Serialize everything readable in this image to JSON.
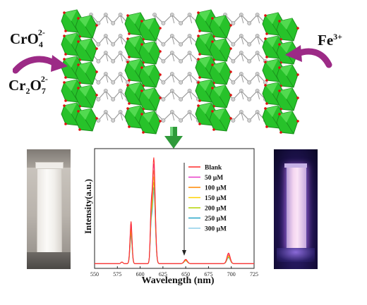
{
  "ions": {
    "left_top": {
      "base": "CrO",
      "sub": "4",
      "sup": "2-"
    },
    "left_bottom": {
      "base1": "Cr",
      "sub1": "2",
      "base2": "O",
      "sub2": "7",
      "sup": "2-"
    },
    "right": {
      "base": "Fe",
      "sup": "3+"
    }
  },
  "colors": {
    "polyhedra": "#27c22a",
    "polyhedra_dark": "#1a8f1c",
    "linker_atoms": "#d2d2d2",
    "oxygen": "#e01010",
    "arrow_magenta": "#9c2a86",
    "down_arrow": "#2f9a3a"
  },
  "chart_data": {
    "type": "line",
    "xlabel": "Wavelength (nm)",
    "ylabel": "Intensity(a.u.)",
    "xlim": [
      550,
      725
    ],
    "x_ticks": [
      "550",
      "575",
      "600",
      "625",
      "650",
      "675",
      "700",
      "725"
    ],
    "legend_position": "top-right",
    "peaks_nm": [
      590,
      615,
      650,
      697
    ],
    "series": [
      {
        "name": "Blank",
        "color": "#ff2a2a",
        "peaks": [
          0.4,
          1.0,
          0.04,
          0.1
        ]
      },
      {
        "name": "50 μM",
        "color": "#e83cc8",
        "peaks": [
          0.37,
          0.94,
          0.04,
          0.09
        ]
      },
      {
        "name": "100 μM",
        "color": "#ff8800",
        "peaks": [
          0.34,
          0.88,
          0.035,
          0.08
        ]
      },
      {
        "name": "150 μM",
        "color": "#ffd200",
        "peaks": [
          0.31,
          0.82,
          0.03,
          0.07
        ]
      },
      {
        "name": "200 μM",
        "color": "#b3d400",
        "peaks": [
          0.29,
          0.77,
          0.03,
          0.065
        ]
      },
      {
        "name": "250 μM",
        "color": "#25a5c8",
        "peaks": [
          0.27,
          0.72,
          0.03,
          0.06
        ]
      },
      {
        "name": "300 μM",
        "color": "#8ecfe8",
        "peaks": [
          0.25,
          0.68,
          0.025,
          0.055
        ]
      }
    ]
  }
}
